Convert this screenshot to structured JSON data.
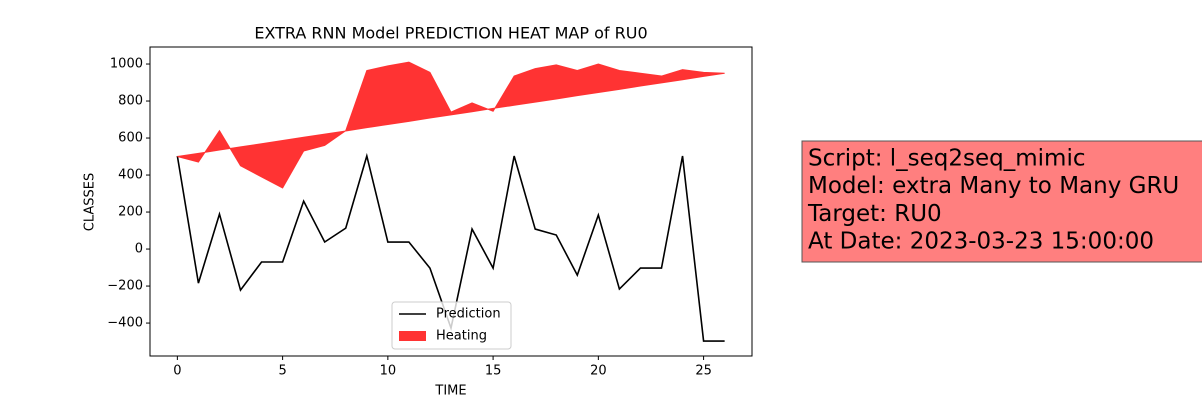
{
  "chart_data": {
    "type": "line",
    "title": "EXTRA RNN Model PREDICTION HEAT MAP of RU0",
    "x_label": "TIME",
    "y_label": "CLASSES",
    "x": [
      0,
      1,
      2,
      3,
      4,
      5,
      6,
      7,
      8,
      9,
      10,
      11,
      12,
      13,
      14,
      15,
      16,
      17,
      18,
      19,
      20,
      21,
      22,
      23,
      24,
      25,
      26
    ],
    "series": [
      {
        "name": "Prediction",
        "color": "#000000",
        "kind": "line",
        "values": [
          503,
          -184,
          189,
          -222,
          -70,
          -70,
          259,
          38,
          113,
          503,
          38,
          38,
          -103,
          -427,
          108,
          -103,
          503,
          108,
          76,
          -141,
          184,
          -216,
          -103,
          -103,
          503,
          -497,
          -497
        ]
      },
      {
        "name": "Heating",
        "color": "#ff3333",
        "kind": "fill",
        "values": [
          500,
          470,
          640,
          450,
          390,
          330,
          530,
          560,
          640,
          965,
          990,
          1010,
          955,
          740,
          790,
          745,
          935,
          975,
          995,
          965,
          1000,
          965,
          950,
          935,
          970,
          955,
          950
        ],
        "base": [
          500,
          517,
          535,
          552,
          569,
          587,
          604,
          621,
          638,
          656,
          673,
          690,
          708,
          725,
          742,
          760,
          777,
          794,
          811,
          829,
          846,
          863,
          881,
          898,
          915,
          933,
          950
        ]
      }
    ],
    "xlim": [
      -1.3,
      27.3
    ],
    "ylim": [
      -578,
      1092
    ],
    "xticks": [
      0,
      5,
      10,
      15,
      20,
      25
    ],
    "yticks": [
      {
        "value": -400,
        "label": "−400"
      },
      {
        "value": -200,
        "label": "−200"
      },
      0,
      200,
      400,
      600,
      800,
      1000
    ],
    "legend": "lower center",
    "annotation": [
      "Script: l_seq2seq_mimic",
      "Model: extra Many to Many GRU",
      "Target: RU0",
      "At Date: 2023-03-23 15:00:00"
    ]
  }
}
